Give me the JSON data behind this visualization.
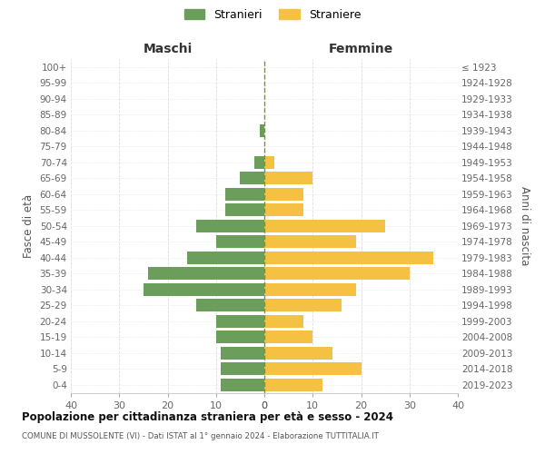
{
  "age_groups": [
    "0-4",
    "5-9",
    "10-14",
    "15-19",
    "20-24",
    "25-29",
    "30-34",
    "35-39",
    "40-44",
    "45-49",
    "50-54",
    "55-59",
    "60-64",
    "65-69",
    "70-74",
    "75-79",
    "80-84",
    "85-89",
    "90-94",
    "95-99",
    "100+"
  ],
  "birth_years": [
    "2019-2023",
    "2014-2018",
    "2009-2013",
    "2004-2008",
    "1999-2003",
    "1994-1998",
    "1989-1993",
    "1984-1988",
    "1979-1983",
    "1974-1978",
    "1969-1973",
    "1964-1968",
    "1959-1963",
    "1954-1958",
    "1949-1953",
    "1944-1948",
    "1939-1943",
    "1934-1938",
    "1929-1933",
    "1924-1928",
    "≤ 1923"
  ],
  "males": [
    9,
    9,
    9,
    10,
    10,
    14,
    25,
    24,
    16,
    10,
    14,
    8,
    8,
    5,
    2,
    0,
    1,
    0,
    0,
    0,
    0
  ],
  "females": [
    12,
    20,
    14,
    10,
    8,
    16,
    19,
    30,
    35,
    19,
    25,
    8,
    8,
    10,
    2,
    0,
    0,
    0,
    0,
    0,
    0
  ],
  "male_color": "#6a9e5a",
  "female_color": "#f5c142",
  "dashed_line_color": "#8b8b2a",
  "background_color": "#ffffff",
  "grid_color": "#cccccc",
  "title": "Popolazione per cittadinanza straniera per età e sesso - 2024",
  "subtitle": "COMUNE DI MUSSOLENTE (VI) - Dati ISTAT al 1° gennaio 2024 - Elaborazione TUTTITALIA.IT",
  "label_maschi": "Maschi",
  "label_femmine": "Femmine",
  "ylabel_left": "Fasce di età",
  "ylabel_right": "Anni di nascita",
  "xlim": 40,
  "legend_stranieri": "Stranieri",
  "legend_straniere": "Straniere"
}
